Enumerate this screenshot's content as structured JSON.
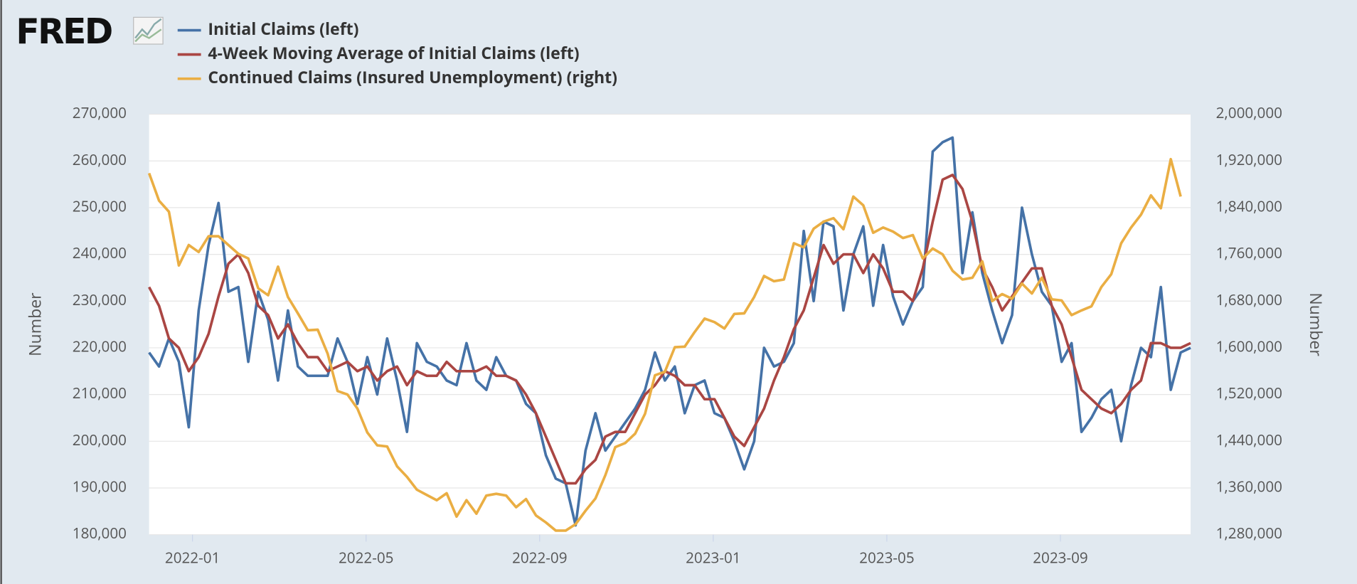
{
  "logo": "FRED",
  "chart_data": {
    "type": "line",
    "xlim": [
      "2021-12",
      "2023-12"
    ],
    "xticks": [
      "2022-01",
      "2022-05",
      "2022-09",
      "2023-01",
      "2023-05",
      "2023-09"
    ],
    "ylabel": "Number",
    "y2label": "Number",
    "ylim": [
      180000,
      270000
    ],
    "yticks": [
      {
        "value": 180000,
        "label": "180,000"
      },
      {
        "value": 190000,
        "label": "190,000"
      },
      {
        "value": 200000,
        "label": "200,000"
      },
      {
        "value": 210000,
        "label": "210,000"
      },
      {
        "value": 220000,
        "label": "220,000"
      },
      {
        "value": 230000,
        "label": "230,000"
      },
      {
        "value": 240000,
        "label": "240,000"
      },
      {
        "value": 250000,
        "label": "250,000"
      },
      {
        "value": 260000,
        "label": "260,000"
      },
      {
        "value": 270000,
        "label": "270,000"
      }
    ],
    "y2lim": [
      1280000,
      2000000
    ],
    "y2ticks": [
      {
        "value": 1280000,
        "label": "1,280,000"
      },
      {
        "value": 1360000,
        "label": "1,360,000"
      },
      {
        "value": 1440000,
        "label": "1,440,000"
      },
      {
        "value": 1520000,
        "label": "1,520,000"
      },
      {
        "value": 1600000,
        "label": "1,600,000"
      },
      {
        "value": 1680000,
        "label": "1,680,000"
      },
      {
        "value": 1760000,
        "label": "1,760,000"
      },
      {
        "value": 1840000,
        "label": "1,840,000"
      },
      {
        "value": 1920000,
        "label": "1,920,000"
      },
      {
        "value": 2000000,
        "label": "2,000,000"
      }
    ],
    "grid": true,
    "series": [
      {
        "name": "Initial Claims (left)",
        "color": "#4572a7",
        "axis": "y",
        "values": [
          219000,
          216000,
          222000,
          217000,
          203000,
          228000,
          242000,
          251000,
          232000,
          233000,
          217000,
          232000,
          226000,
          213000,
          228000,
          216000,
          214000,
          214000,
          214000,
          222000,
          217000,
          208000,
          218000,
          210000,
          222000,
          213000,
          202000,
          221000,
          217000,
          216000,
          213000,
          212000,
          221000,
          213000,
          211000,
          218000,
          214000,
          213000,
          208000,
          206000,
          197000,
          192000,
          191000,
          182000,
          198000,
          206000,
          198000,
          201000,
          204000,
          207000,
          211000,
          219000,
          213000,
          216000,
          206000,
          212000,
          213000,
          206000,
          205000,
          200000,
          194000,
          200000,
          220000,
          216000,
          217000,
          221000,
          245000,
          230000,
          247000,
          246000,
          228000,
          240000,
          246000,
          229000,
          242000,
          231000,
          225000,
          230000,
          233000,
          262000,
          264000,
          265000,
          236000,
          249000,
          236000,
          228000,
          221000,
          227000,
          250000,
          240000,
          232000,
          229000,
          217000,
          221000,
          202000,
          205000,
          209000,
          211000,
          200000,
          212000,
          220000,
          218000,
          233000,
          211000,
          219000,
          220000
        ]
      },
      {
        "name": "4-Week Moving Average of Initial Claims (left)",
        "color": "#aa4643",
        "axis": "y",
        "values": [
          233000,
          229000,
          222000,
          220000,
          215000,
          218000,
          223000,
          231000,
          238000,
          240000,
          236000,
          229000,
          227000,
          222000,
          225000,
          221000,
          218000,
          218000,
          215000,
          216000,
          217000,
          215000,
          216000,
          213000,
          215000,
          216000,
          212000,
          215000,
          214000,
          214000,
          217000,
          215000,
          215000,
          215000,
          216000,
          214000,
          214000,
          213000,
          210000,
          206000,
          201000,
          196000,
          191000,
          191000,
          194000,
          196000,
          201000,
          202000,
          202000,
          206000,
          210000,
          212000,
          215000,
          214000,
          212000,
          212000,
          209000,
          209000,
          205000,
          201000,
          199000,
          203000,
          207000,
          213000,
          218000,
          224000,
          228000,
          235000,
          242000,
          238000,
          240000,
          240000,
          236000,
          240000,
          237000,
          232000,
          232000,
          230000,
          237000,
          247000,
          256000,
          257000,
          254000,
          247000,
          237000,
          233000,
          228000,
          231000,
          234000,
          237000,
          237000,
          229000,
          225000,
          218000,
          211000,
          209000,
          207000,
          206000,
          208000,
          211000,
          213000,
          221000,
          221000,
          220000,
          220000,
          221000
        ]
      },
      {
        "name": "Continued Claims (Insured Unemployment) (right)",
        "color": "#eaae43",
        "axis": "y2",
        "values": [
          1899000,
          1852000,
          1833000,
          1741000,
          1776000,
          1764000,
          1791000,
          1791000,
          1776000,
          1761000,
          1753000,
          1702000,
          1690000,
          1739000,
          1687000,
          1659000,
          1630000,
          1631000,
          1590000,
          1526000,
          1520000,
          1496000,
          1455000,
          1433000,
          1431000,
          1397000,
          1379000,
          1357000,
          1348000,
          1339000,
          1351000,
          1311000,
          1339000,
          1316000,
          1347000,
          1350000,
          1347000,
          1327000,
          1341000,
          1313000,
          1301000,
          1287000,
          1287000,
          1298000,
          1321000,
          1342000,
          1382000,
          1430000,
          1437000,
          1453000,
          1487000,
          1553000,
          1559000,
          1601000,
          1602000,
          1627000,
          1650000,
          1644000,
          1633000,
          1658000,
          1659000,
          1687000,
          1723000,
          1714000,
          1717000,
          1779000,
          1772000,
          1804000,
          1816000,
          1822000,
          1803000,
          1859000,
          1844000,
          1797000,
          1806000,
          1799000,
          1788000,
          1793000,
          1753000,
          1770000,
          1760000,
          1732000,
          1717000,
          1720000,
          1748000,
          1680000,
          1692000,
          1684000,
          1710000,
          1693000,
          1720000,
          1683000,
          1681000,
          1656000,
          1664000,
          1671000,
          1704000,
          1726000,
          1779000,
          1806000,
          1828000,
          1861000,
          1839000,
          1923000,
          1859000,
          null
        ]
      }
    ]
  }
}
